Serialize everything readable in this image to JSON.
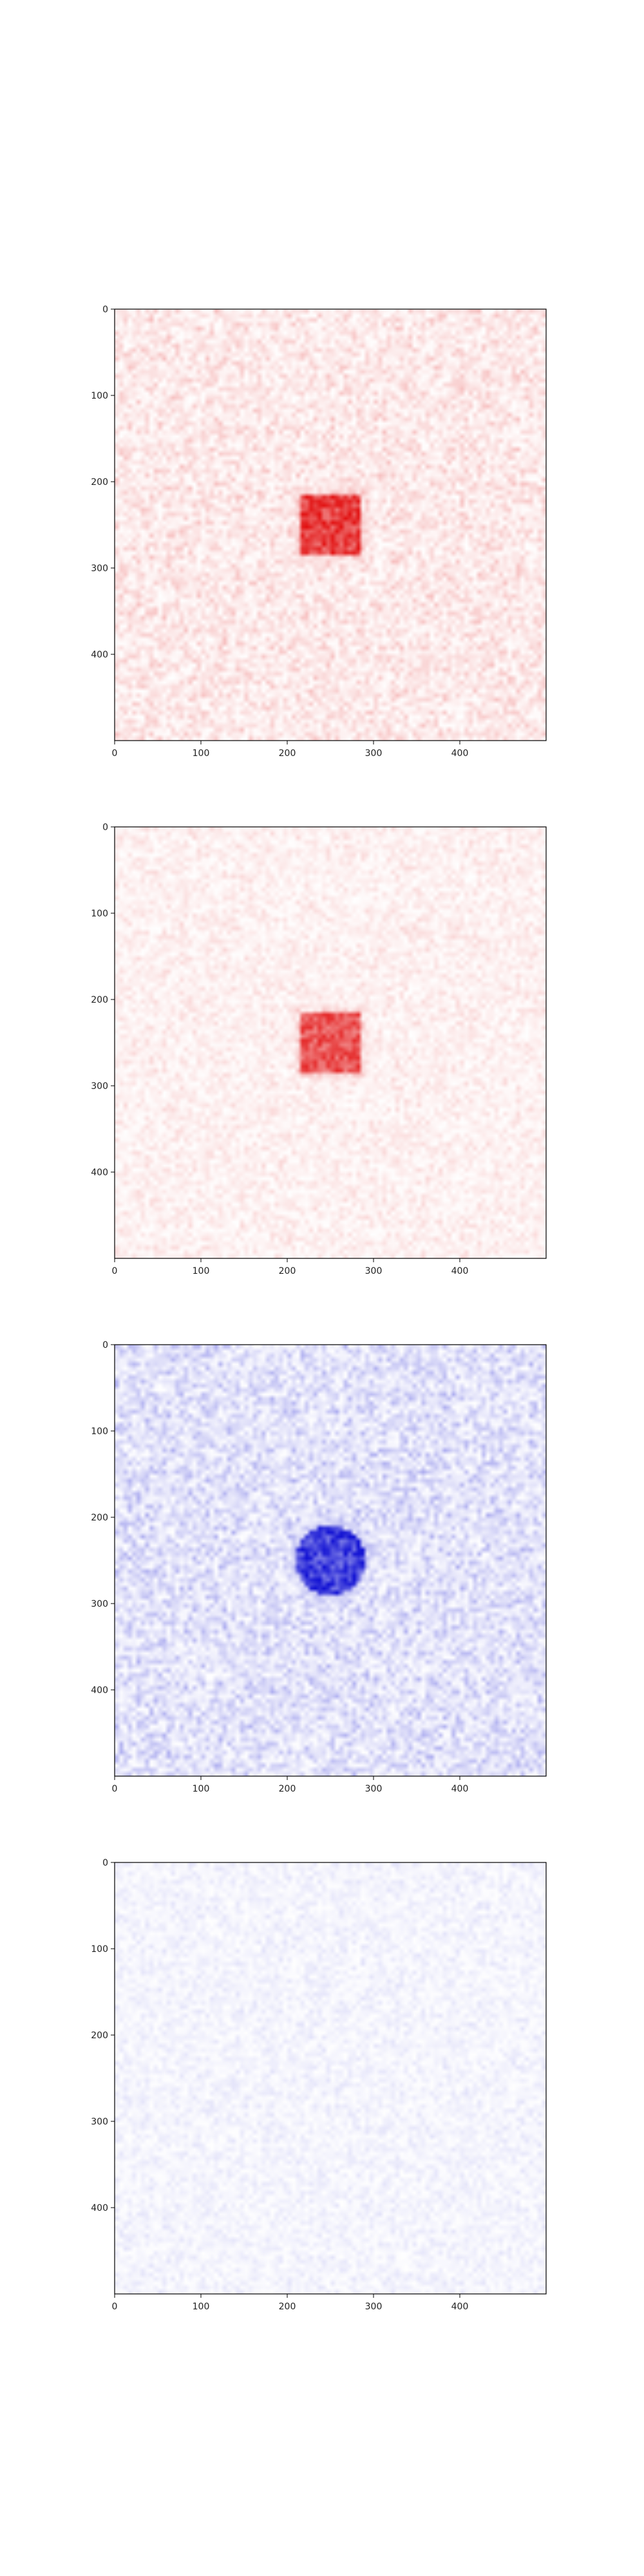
{
  "chart_data": [
    {
      "type": "heatmap",
      "colormap": "white-to-red",
      "color": "#e00000",
      "xlim": [
        0,
        500
      ],
      "ylim": [
        500,
        0
      ],
      "xticks": [
        "0",
        "100",
        "200",
        "300",
        "400"
      ],
      "yticks": [
        "0",
        "100",
        "200",
        "300",
        "400"
      ],
      "feature": {
        "shape": "square",
        "center": [
          250,
          250
        ],
        "half_size": 35,
        "intensity": 0.95
      },
      "noise_level": 0.22
    },
    {
      "type": "heatmap",
      "colormap": "white-to-red",
      "color": "#e00000",
      "xlim": [
        0,
        500
      ],
      "ylim": [
        500,
        0
      ],
      "xticks": [
        "0",
        "100",
        "200",
        "300",
        "400"
      ],
      "yticks": [
        "0",
        "100",
        "200",
        "300",
        "400"
      ],
      "feature": {
        "shape": "square",
        "center": [
          250,
          250
        ],
        "half_size": 35,
        "intensity": 0.85
      },
      "noise_level": 0.14
    },
    {
      "type": "heatmap",
      "colormap": "white-to-blue",
      "color": "#0000d0",
      "xlim": [
        0,
        500
      ],
      "ylim": [
        500,
        0
      ],
      "xticks": [
        "0",
        "100",
        "200",
        "300",
        "400"
      ],
      "yticks": [
        "0",
        "100",
        "200",
        "300",
        "400"
      ],
      "feature": {
        "shape": "disc",
        "center": [
          250,
          250
        ],
        "half_size": 40,
        "intensity": 0.95
      },
      "noise_level": 0.28
    },
    {
      "type": "heatmap",
      "colormap": "white-to-blue",
      "color": "#0000d0",
      "xlim": [
        0,
        500
      ],
      "ylim": [
        500,
        0
      ],
      "xticks": [
        "0",
        "100",
        "200",
        "300",
        "400"
      ],
      "yticks": [
        "0",
        "100",
        "200",
        "300",
        "400"
      ],
      "feature": null,
      "noise_level": 0.1
    }
  ]
}
